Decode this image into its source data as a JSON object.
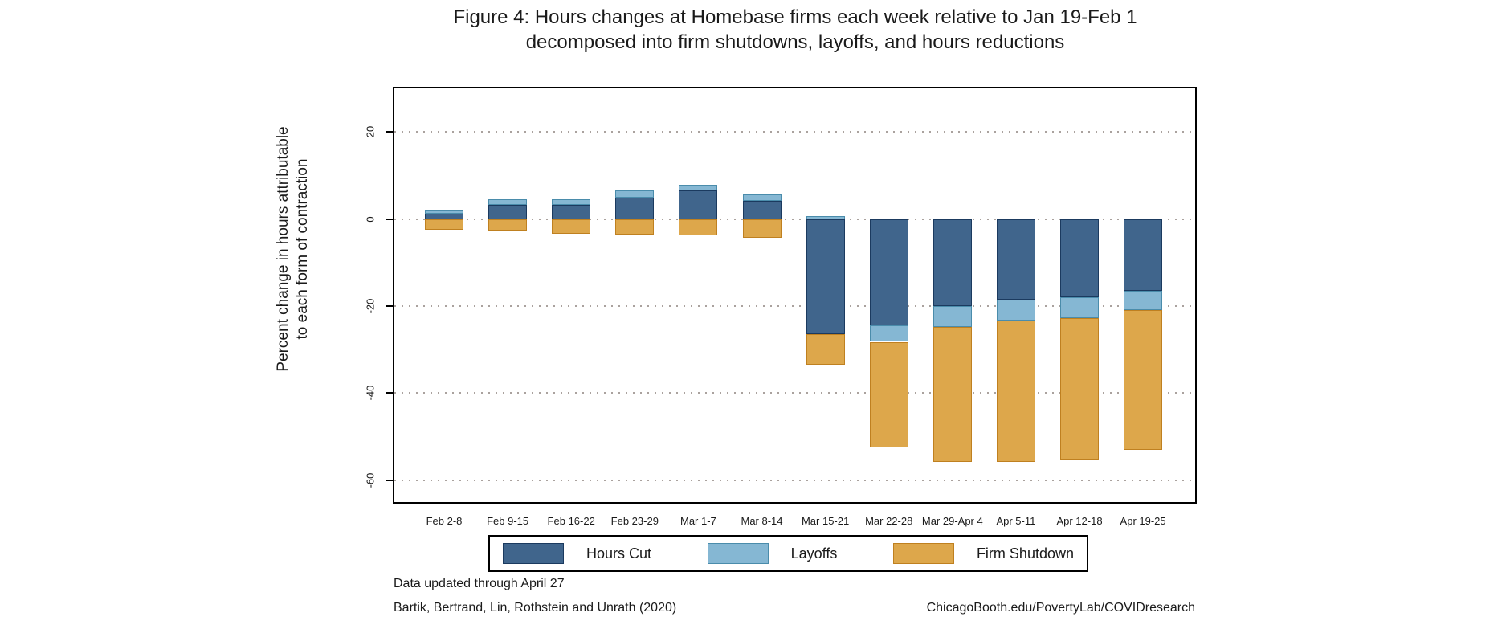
{
  "title": {
    "line1": "Figure 4: Hours changes at Homebase firms each week relative to Jan 19-Feb 1",
    "line2": "decomposed into firm shutdowns, layoffs, and hours reductions"
  },
  "y_axis": {
    "title_line1": "Percent change in hours attributable",
    "title_line2": "to each form of contraction"
  },
  "footer": {
    "note1": "Data updated through April 27",
    "note2": "Bartik, Bertrand, Lin, Rothstein and Unrath (2020)",
    "source": "ChicagoBooth.edu/PovertyLab/COVIDresearch"
  },
  "colors": {
    "hours_cut_fill": "#40658c",
    "hours_cut_border": "#1b3a5f",
    "layoffs_fill": "#85b7d3",
    "layoffs_border": "#4a8cab",
    "firm_shutdown_fill": "#dda74b",
    "firm_shutdown_border": "#bf8020",
    "gridline": "#aaa29e"
  },
  "chart_data": {
    "type": "bar",
    "stacked": true,
    "title": "Figure 4: Hours changes at Homebase firms each week relative to Jan 19-Feb 1 decomposed into firm shutdowns, layoffs, and hours reductions",
    "xlabel": "",
    "ylabel": "Percent change in hours attributable to each form of contraction",
    "ylim": [
      -65,
      30
    ],
    "grid": true,
    "gridlines": [
      20,
      0,
      -20,
      -40,
      -60
    ],
    "y_tick_labels": [
      "20",
      "0",
      "-20",
      "-40",
      "-60"
    ],
    "legend_position": "bottom",
    "categories": [
      "Feb 2-8",
      "Feb 9-15",
      "Feb 16-22",
      "Feb 23-29",
      "Mar 1-7",
      "Mar 8-14",
      "Mar 15-21",
      "Mar 22-28",
      "Mar 29-Apr 4",
      "Apr 5-11",
      "Apr 12-18",
      "Apr 19-25"
    ],
    "series": [
      {
        "name": "Hours Cut",
        "fill": "#40658c",
        "border": "#1b3a5f",
        "values": [
          1.3,
          3.3,
          3.3,
          5.0,
          6.5,
          4.2,
          -26.5,
          -24.5,
          -20.0,
          -18.6,
          -18.0,
          -16.5
        ]
      },
      {
        "name": "Layoffs",
        "fill": "#85b7d3",
        "border": "#4a8cab",
        "values": [
          0.7,
          1.3,
          1.3,
          1.5,
          1.4,
          1.4,
          0.7,
          -3.7,
          -4.8,
          -4.7,
          -4.7,
          -4.5
        ]
      },
      {
        "name": "Firm Shutdown",
        "fill": "#dda74b",
        "border": "#bf8020",
        "values": [
          -2.4,
          -2.7,
          -3.3,
          -3.5,
          -3.7,
          -4.3,
          -6.9,
          -24.3,
          -31.0,
          -32.4,
          -32.7,
          -32.0
        ]
      }
    ]
  }
}
